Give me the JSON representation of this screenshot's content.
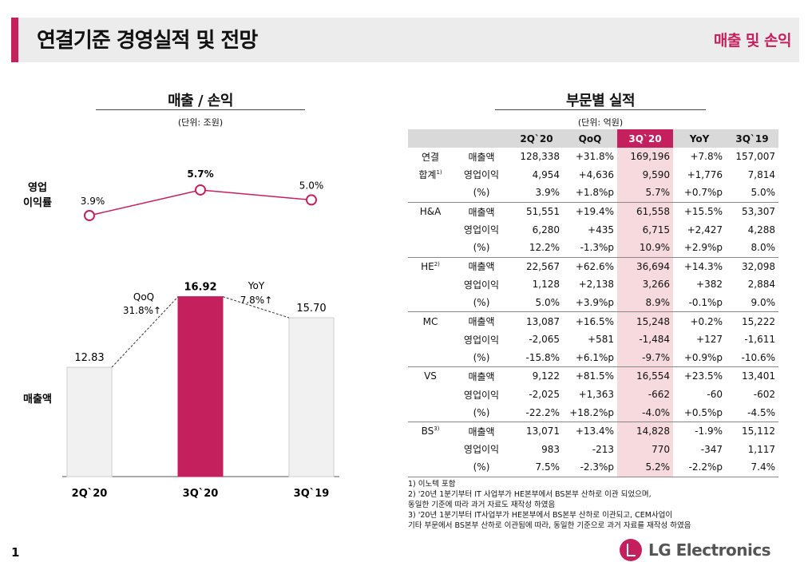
{
  "header": {
    "title": "연결기준 경영실적 및 전망",
    "subtitle": "매출 및 손익"
  },
  "left": {
    "title": "매출 / 손익",
    "unit": "(단위: 조원)"
  },
  "right": {
    "title": "부문별 실적",
    "unit": "(단위: 억원)"
  },
  "chart_data": {
    "type": "bar",
    "categories": [
      "2Q`20",
      "3Q`20",
      "3Q`19"
    ],
    "series": [
      {
        "name": "매출액",
        "values": [
          12.83,
          16.92,
          15.7
        ]
      },
      {
        "name": "영업 이익률",
        "values": [
          "3.9%",
          "5.7%",
          "5.0%"
        ]
      }
    ],
    "row_labels": {
      "margin": "영업\n이익률",
      "sales": "매출액"
    },
    "annotations": [
      {
        "label": "QoQ",
        "value": "31.8%↑"
      },
      {
        "label": "YoY",
        "value": "7.8%↑"
      }
    ],
    "colors": {
      "highlight": "#c4205e",
      "bar": "#f1f1f1",
      "line": "#c4205e"
    }
  },
  "table": {
    "columns": [
      "2Q`20",
      "QoQ",
      "3Q`20",
      "YoY",
      "3Q`19"
    ],
    "rows": [
      {
        "g": "연결",
        "m": "매출액",
        "v": [
          "128,338",
          "+31.8%",
          "169,196",
          "+7.8%",
          "157,007"
        ]
      },
      {
        "g": "합계",
        "gsup": "1)",
        "m": "영업이익",
        "v": [
          "4,954",
          "+4,636",
          "9,590",
          "+1,776",
          "7,814"
        ]
      },
      {
        "g": "",
        "m": "(%)",
        "v": [
          "3.9%",
          "+1.8%p",
          "5.7%",
          "+0.7%p",
          "5.0%"
        ]
      },
      {
        "g": "H&A",
        "m": "매출액",
        "v": [
          "51,551",
          "+19.4%",
          "61,558",
          "+15.5%",
          "53,307"
        ]
      },
      {
        "g": "",
        "m": "영업이익",
        "v": [
          "6,280",
          "+435",
          "6,715",
          "+2,427",
          "4,288"
        ]
      },
      {
        "g": "",
        "m": "(%)",
        "v": [
          "12.2%",
          "-1.3%p",
          "10.9%",
          "+2.9%p",
          "8.0%"
        ]
      },
      {
        "g": "HE",
        "gsup": "2)",
        "m": "매출액",
        "v": [
          "22,567",
          "+62.6%",
          "36,694",
          "+14.3%",
          "32,098"
        ]
      },
      {
        "g": "",
        "m": "영업이익",
        "v": [
          "1,128",
          "+2,138",
          "3,266",
          "+382",
          "2,884"
        ]
      },
      {
        "g": "",
        "m": "(%)",
        "v": [
          "5.0%",
          "+3.9%p",
          "8.9%",
          "-0.1%p",
          "9.0%"
        ]
      },
      {
        "g": "MC",
        "m": "매출액",
        "v": [
          "13,087",
          "+16.5%",
          "15,248",
          "+0.2%",
          "15,222"
        ]
      },
      {
        "g": "",
        "m": "영업이익",
        "v": [
          "-2,065",
          "+581",
          "-1,484",
          "+127",
          "-1,611"
        ]
      },
      {
        "g": "",
        "m": "(%)",
        "v": [
          "-15.8%",
          "+6.1%p",
          "-9.7%",
          "+0.9%p",
          "-10.6%"
        ]
      },
      {
        "g": "VS",
        "m": "매출액",
        "v": [
          "9,122",
          "+81.5%",
          "16,554",
          "+23.5%",
          "13,401"
        ]
      },
      {
        "g": "",
        "m": "영업이익",
        "v": [
          "-2,025",
          "+1,363",
          "-662",
          "-60",
          "-602"
        ]
      },
      {
        "g": "",
        "m": "(%)",
        "v": [
          "-22.2%",
          "+18.2%p",
          "-4.0%",
          "+0.5%p",
          "-4.5%"
        ]
      },
      {
        "g": "BS",
        "gsup": "3)",
        "m": "매출액",
        "v": [
          "13,071",
          "+13.4%",
          "14,828",
          "-1.9%",
          "15,112"
        ]
      },
      {
        "g": "",
        "m": "영업이익",
        "v": [
          "983",
          "-213",
          "770",
          "-347",
          "1,117"
        ]
      },
      {
        "g": "",
        "m": "(%)",
        "v": [
          "7.5%",
          "-2.3%p",
          "5.2%",
          "-2.2%p",
          "7.4%"
        ]
      }
    ]
  },
  "footnotes": [
    "1) 이노텍 포함",
    "2) '20년 1분기부터 IT 사업부가 HE본부에서 BS본부 산하로 이관 되었으며,",
    "    동일한 기준에 따라 과거 자료도 재작성 하였음",
    "3) '20년 1분기부터 IT사업부가 HE본부에서 BS본부 산하로 이관되고, CEM사업이",
    "    기타 부문에서 BS본부 산하로 이관됨에 따라, 동일한 기준으로 과거 자료를 재작성 하였음"
  ],
  "footer": {
    "page": "1",
    "brand": "LG Electronics"
  }
}
